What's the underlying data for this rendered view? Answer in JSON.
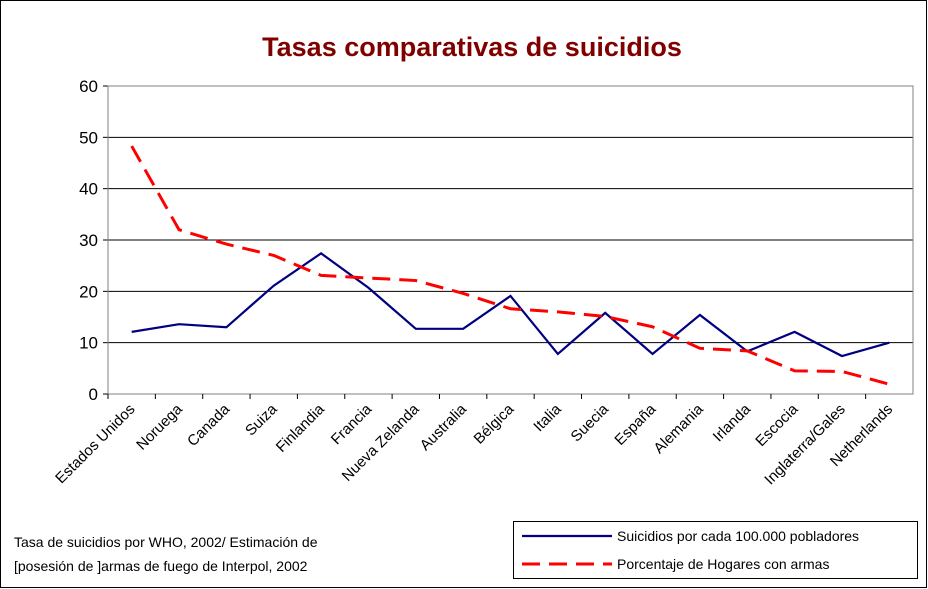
{
  "chart_data": {
    "type": "line",
    "title": "Tasas comparativas de suicidios",
    "categories": [
      "Estados Unidos",
      "Noruega",
      "Canada",
      "Suiza",
      "Finlandia",
      "Francia",
      "Nueva Zelanda",
      "Australia",
      "Bélgica",
      "Italia",
      "Suecia",
      "España",
      "Alemania",
      "Irlanda",
      "Escocia",
      "Inglaterra/Gales",
      "Netherlands"
    ],
    "series": [
      {
        "name": "Suicidios por cada 100.000 pobladores",
        "color": "#000080",
        "dash": false,
        "values": [
          12.1,
          13.6,
          13.0,
          21.1,
          27.4,
          20.7,
          12.7,
          12.7,
          19.1,
          7.8,
          15.8,
          7.8,
          15.4,
          8.3,
          12.1,
          7.4,
          10.0
        ]
      },
      {
        "name": "Porcentaje de Hogares con armas",
        "color": "#ff0000",
        "dash": true,
        "values": [
          48.3,
          32.0,
          29.2,
          27.0,
          23.1,
          22.6,
          22.1,
          19.6,
          16.6,
          16.0,
          15.1,
          13.1,
          8.9,
          8.4,
          4.5,
          4.4,
          1.9
        ]
      }
    ],
    "ylim": [
      0,
      60
    ],
    "yticks": [
      0,
      10,
      20,
      30,
      40,
      50,
      60
    ],
    "grid": true,
    "annotation": [
      "Tasa de suicidios por WHO, 2002/ Estimación de",
      "[posesión de ]armas de fuego de Interpol, 2002"
    ],
    "legend": "bottom-right"
  }
}
